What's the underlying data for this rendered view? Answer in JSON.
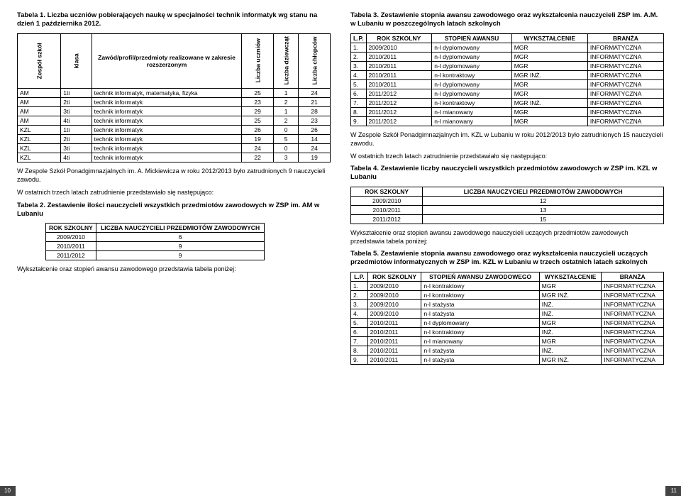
{
  "left": {
    "caption1": "Tabela 1. Liczba uczniów pobierających naukę w specjalności technik informatyk wg stanu na dzień 1 października 2012.",
    "tbl1": {
      "headers": [
        "Zespół szkół",
        "klasa",
        "Zawód/profil/przedmioty realizowane w zakresie rozszerzonym",
        "Liczba uczniów",
        "Liczba dziewcząt",
        "Liczba chłopców"
      ],
      "rows": [
        [
          "AM",
          "1ti",
          "technik informatyk, matematyka, fizyka",
          "25",
          "1",
          "24"
        ],
        [
          "AM",
          "2ti",
          "technik informatyk",
          "23",
          "2",
          "21"
        ],
        [
          "AM",
          "3ti",
          "technik informatyk",
          "29",
          "1",
          "28"
        ],
        [
          "AM",
          "4ti",
          "technik informatyk",
          "25",
          "2",
          "23"
        ],
        [
          "KZL",
          "1ti",
          "technik informatyk",
          "26",
          "0",
          "26"
        ],
        [
          "KZL",
          "2ti",
          "technik informatyk",
          "19",
          "5",
          "14"
        ],
        [
          "KZL",
          "3ti",
          "technik informatyk",
          "24",
          "0",
          "24"
        ],
        [
          "KZL",
          "4ti",
          "technik informatyk",
          "22",
          "3",
          "19"
        ]
      ]
    },
    "para1": "W Zespole Szkół Ponadgimnazjalnych im. A. Mickiewicza w roku 2012/2013 było zatrudnionych 9 nauczycieli zawodu.",
    "para2": "W ostatnich trzech latach zatrudnienie przedstawiało się następująco:",
    "caption2": "Tabela 2. Zestawienie ilości nauczycieli wszystkich przedmiotów zawodowych w ZSP im. AM w Lubaniu",
    "tbl2": {
      "headers": [
        "ROK SZKOLNY",
        "LICZBA NAUCZYCIELI PRZEDMIOTÓW ZAWODOWYCH"
      ],
      "rows": [
        [
          "2009/2010",
          "6"
        ],
        [
          "2010/2011",
          "9"
        ],
        [
          "2011/2012",
          "9"
        ]
      ]
    },
    "para3": "Wykształcenie oraz stopień awansu zawodowego przedstawia tabela poniżej:",
    "pagenum": "10"
  },
  "right": {
    "caption3": "Tabela 3. Zestawienie stopnia awansu zawodowego oraz wykształcenia nauczycieli ZSP im. A.M. w Lubaniu w poszczególnych latach szkolnych",
    "tbl3": {
      "headers": [
        "L.P.",
        "ROK SZKOLNY",
        "STOPIEŃ AWANSU",
        "WYKSZTAŁCENIE",
        "BRANŻA"
      ],
      "rows": [
        [
          "1.",
          "2009/2010",
          "n-l dyplomowany",
          "MGR",
          "INFORMATYCZNA"
        ],
        [
          "2.",
          "2010/2011",
          "n-l dyplomowany",
          "MGR",
          "INFORMATYCZNA"
        ],
        [
          "3.",
          "2010/2011",
          "n-l dyplomowany",
          "MGR",
          "INFORMATYCZNA"
        ],
        [
          "4.",
          "2010/2011",
          "n-l kontraktowy",
          "MGR INŻ.",
          "INFORMATYCZNA"
        ],
        [
          "5.",
          "2010/2011",
          "n-l dyplomowany",
          "MGR",
          "INFORMATYCZNA"
        ],
        [
          "6.",
          "2011/2012",
          "n-l dyplomowany",
          "MGR",
          "INFORMATYCZNA"
        ],
        [
          "7.",
          "2011/2012",
          "n-l kontraktowy",
          "MGR INŻ.",
          "INFORMATYCZNA"
        ],
        [
          "8.",
          "2011/2012",
          "n-l mianowany",
          "MGR",
          "INFORMATYCZNA"
        ],
        [
          "9.",
          "2011/2012",
          "n-l mianowany",
          "MGR",
          "INFORMATYCZNA"
        ]
      ]
    },
    "para4": "W Zespole Szkół Ponadgimnazjalnych im. KZL w Lubaniu w roku 2012/2013 było zatrudnionych 15 nauczycieli zawodu.",
    "para5": "W ostatnich trzech latach zatrudnienie przedstawiało się następująco:",
    "caption4": "Tabela 4. Zestawienie liczby nauczycieli wszystkich przedmiotów zawodowych w ZSP im. KZL w Lubaniu",
    "tbl4": {
      "headers": [
        "ROK SZKOLNY",
        "LICZBA NAUCZYCIELI PRZEDMIOTÓW ZAWODOWYCH"
      ],
      "rows": [
        [
          "2009/2010",
          "12"
        ],
        [
          "2010/2011",
          "13"
        ],
        [
          "2011/2012",
          "15"
        ]
      ]
    },
    "para6": "Wykształcenie oraz stopień awansu zawodowego nauczycieli uczących przedmiotów zawodowych przedstawia tabela poniżej:",
    "caption5": "Tabela 5. Zestawienie stopnia awansu zawodowego oraz wykształcenia nauczycieli uczących przedmiotów informatycznych w ZSP im. KZL w Lubaniu w trzech ostatnich latach szkolnych",
    "tbl5": {
      "headers": [
        "L.P.",
        "ROK SZKOLNY",
        "STOPIEŃ AWANSU ZAWODOWEGO",
        "WYKSZTAŁCENIE",
        "BRANŻA"
      ],
      "rows": [
        [
          "1.",
          "2009/2010",
          "n-l kontraktowy",
          "MGR",
          "INFORMATYCZNA"
        ],
        [
          "2.",
          "2009/2010",
          "n-l kontraktowy",
          "MGR INŻ.",
          "INFORMATYCZNA"
        ],
        [
          "3.",
          "2009/2010",
          "n-l stażysta",
          "INŻ.",
          "INFORMATYCZNA"
        ],
        [
          "4.",
          "2009/2010",
          "n-l stażysta",
          "INŻ.",
          "INFORMATYCZNA"
        ],
        [
          "5.",
          "2010/2011",
          "n-l dyplomowany",
          "MGR",
          "INFORMATYCZNA"
        ],
        [
          "6.",
          "2010/2011",
          "n-l kontraktowy",
          "INŻ.",
          "INFORMATYCZNA"
        ],
        [
          "7.",
          "2010/2011",
          "n-l mianowany",
          "MGR",
          "INFORMATYCZNA"
        ],
        [
          "8.",
          "2010/2011",
          "n-l stażysta",
          "INŻ.",
          "INFORMATYCZNA"
        ],
        [
          "9.",
          "2010/2011",
          "n-l stażysta",
          "MGR INŻ.",
          "INFORMATYCZNA"
        ]
      ]
    },
    "pagenum": "11"
  }
}
